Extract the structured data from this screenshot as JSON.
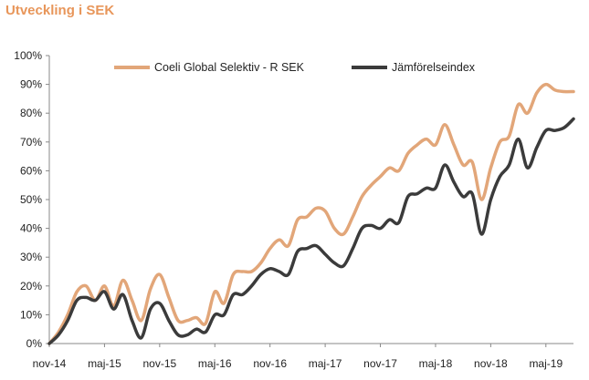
{
  "header": {
    "title": "Utveckling i SEK"
  },
  "colors": {
    "accent": "#E8965A",
    "series_a": "#E2A679",
    "series_b": "#3B3B3B",
    "axis": "#888888"
  },
  "chart_data": {
    "type": "line",
    "title": "Utveckling i SEK",
    "xlabel": "",
    "ylabel": "",
    "ylim": [
      0,
      100
    ],
    "grid": false,
    "legend": "top",
    "yticks": [
      "0%",
      "10%",
      "20%",
      "30%",
      "40%",
      "50%",
      "60%",
      "70%",
      "80%",
      "90%",
      "100%"
    ],
    "xticks": [
      "nov-14",
      "maj-15",
      "nov-15",
      "maj-16",
      "nov-16",
      "maj-17",
      "nov-17",
      "maj-18",
      "nov-18",
      "maj-19"
    ],
    "x": [
      "nov-14",
      "dec-14",
      "jan-15",
      "feb-15",
      "mar-15",
      "apr-15",
      "maj-15",
      "jun-15",
      "jul-15",
      "aug-15",
      "sep-15",
      "okt-15",
      "nov-15",
      "dec-15",
      "jan-16",
      "feb-16",
      "mar-16",
      "apr-16",
      "maj-16",
      "jun-16",
      "jul-16",
      "aug-16",
      "sep-16",
      "okt-16",
      "nov-16",
      "dec-16",
      "jan-17",
      "feb-17",
      "mar-17",
      "apr-17",
      "maj-17",
      "jun-17",
      "jul-17",
      "aug-17",
      "sep-17",
      "okt-17",
      "nov-17",
      "dec-17",
      "jan-18",
      "feb-18",
      "mar-18",
      "apr-18",
      "maj-18",
      "jun-18",
      "jul-18",
      "aug-18",
      "sep-18",
      "okt-18",
      "nov-18",
      "dec-18",
      "jan-19",
      "feb-19",
      "mar-19",
      "apr-19",
      "maj-19",
      "jun-19",
      "jul-19",
      "aug-19"
    ],
    "series": [
      {
        "name": "Coeli Global Selektiv - R SEK",
        "values": [
          0,
          4,
          10,
          18,
          20,
          15,
          20,
          13,
          22,
          15,
          8,
          19,
          24,
          16,
          8,
          8,
          9,
          7,
          18,
          14,
          24,
          25,
          25,
          28,
          33,
          36,
          34,
          43,
          44,
          47,
          46,
          40,
          38,
          44,
          51,
          55,
          58,
          61,
          60,
          66,
          69,
          71,
          69,
          76,
          69,
          62,
          63,
          50,
          61,
          70,
          72,
          83,
          80,
          87,
          90,
          88,
          87.5,
          87.5
        ]
      },
      {
        "name": "Jämförelseindex",
        "values": [
          0,
          3,
          8,
          15,
          16,
          15,
          18,
          12,
          17,
          8,
          2,
          12,
          14,
          8,
          3,
          3,
          5,
          4,
          10,
          10,
          17,
          17,
          20,
          24,
          26,
          25,
          24,
          32,
          33,
          34,
          31,
          28,
          27,
          33,
          40,
          41,
          40,
          43,
          42,
          51,
          52,
          54,
          54,
          62,
          56,
          51,
          52,
          38,
          50,
          58,
          62,
          71,
          61,
          68,
          74,
          74,
          75,
          78
        ]
      }
    ]
  }
}
